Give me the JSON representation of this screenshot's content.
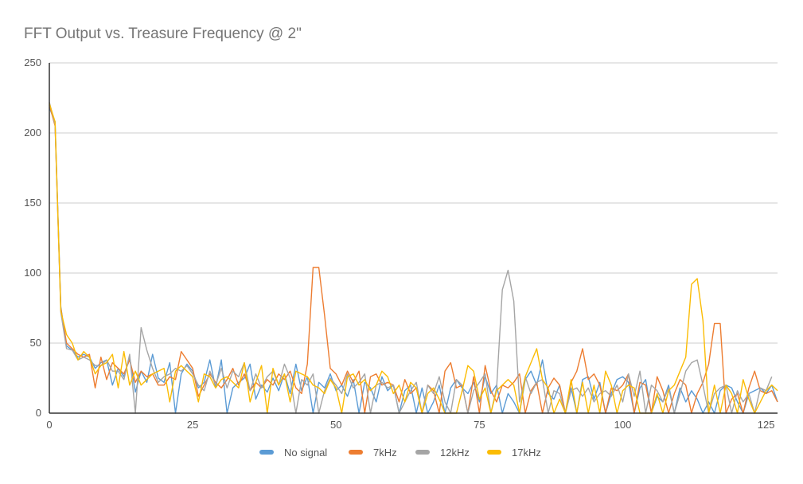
{
  "chart_data": {
    "type": "line",
    "title": "FFT Output vs. Treasure Frequency @ 2\"",
    "xlabel": "",
    "ylabel": "",
    "xlim": [
      0,
      127
    ],
    "ylim": [
      0,
      250
    ],
    "x_ticks": [
      "0",
      "25",
      "50",
      "75",
      "100",
      "125"
    ],
    "y_ticks": [
      "0",
      "50",
      "100",
      "150",
      "200",
      "250"
    ],
    "grid": true,
    "legend_position": "bottom",
    "series": [
      {
        "name": "No signal",
        "color": "#5b9bd5",
        "values": [
          218,
          208,
          76,
          48,
          45,
          40,
          42,
          40,
          32,
          36,
          38,
          20,
          32,
          26,
          40,
          15,
          30,
          22,
          42,
          25,
          22,
          36,
          0,
          28,
          35,
          30,
          18,
          22,
          38,
          18,
          38,
          0,
          18,
          22,
          25,
          35,
          10,
          20,
          15,
          25,
          16,
          28,
          14,
          35,
          16,
          26,
          0,
          22,
          18,
          28,
          16,
          20,
          12,
          24,
          0,
          22,
          18,
          8,
          26,
          16,
          20,
          0,
          16,
          20,
          0,
          18,
          0,
          8,
          20,
          0,
          18,
          24,
          18,
          14,
          22,
          8,
          26,
          14,
          20,
          0,
          14,
          8,
          0,
          24,
          30,
          20,
          38,
          14,
          10,
          20,
          0,
          18,
          0,
          24,
          26,
          10,
          22,
          0,
          14,
          24,
          26,
          22,
          0,
          18,
          24,
          0,
          12,
          8,
          20,
          0,
          18,
          8,
          16,
          10,
          0,
          8,
          0,
          16,
          20,
          18,
          8,
          0,
          14,
          16,
          18,
          14,
          20,
          8
        ]
      },
      {
        "name": "7kHz",
        "color": "#ed7d31",
        "values": [
          220,
          205,
          75,
          50,
          46,
          42,
          40,
          42,
          18,
          40,
          24,
          36,
          32,
          28,
          38,
          22,
          30,
          26,
          28,
          20,
          20,
          26,
          24,
          44,
          38,
          32,
          12,
          20,
          28,
          22,
          18,
          24,
          32,
          20,
          28,
          16,
          22,
          18,
          24,
          20,
          28,
          24,
          30,
          18,
          14,
          35,
          104,
          104,
          70,
          32,
          28,
          20,
          30,
          22,
          30,
          0,
          26,
          28,
          20,
          22,
          20,
          8,
          24,
          14,
          18,
          0,
          20,
          16,
          0,
          30,
          36,
          18,
          20,
          0,
          26,
          0,
          34,
          16,
          8,
          20,
          18,
          22,
          28,
          0,
          16,
          22,
          0,
          18,
          25,
          20,
          0,
          22,
          30,
          46,
          24,
          28,
          20,
          0,
          18,
          16,
          20,
          28,
          0,
          22,
          20,
          0,
          26,
          16,
          0,
          14,
          24,
          20,
          0,
          14,
          22,
          35,
          64,
          64,
          0,
          10,
          14,
          0,
          18,
          30,
          16,
          14,
          16,
          8
        ]
      },
      {
        "name": "12kHz",
        "color": "#a5a5a5",
        "values": [
          222,
          206,
          72,
          46,
          45,
          38,
          40,
          38,
          34,
          34,
          38,
          30,
          30,
          24,
          42,
          0,
          61,
          45,
          32,
          22,
          26,
          28,
          32,
          30,
          34,
          28,
          20,
          16,
          30,
          20,
          32,
          18,
          30,
          26,
          36,
          16,
          28,
          18,
          26,
          30,
          20,
          35,
          25,
          0,
          24,
          20,
          28,
          0,
          16,
          25,
          20,
          14,
          28,
          18,
          22,
          28,
          0,
          20,
          22,
          18,
          20,
          0,
          8,
          16,
          22,
          0,
          20,
          14,
          26,
          8,
          0,
          24,
          20,
          0,
          16,
          22,
          28,
          0,
          18,
          88,
          102,
          80,
          8,
          26,
          14,
          22,
          24,
          0,
          16,
          14,
          0,
          16,
          18,
          12,
          18,
          8,
          14,
          16,
          12,
          20,
          8,
          28,
          12,
          30,
          0,
          20,
          16,
          8,
          18,
          0,
          14,
          30,
          36,
          38,
          20,
          0,
          14,
          18,
          20,
          0,
          16,
          8,
          14,
          0,
          18,
          16,
          26
        ]
      },
      {
        "name": "17kHz",
        "color": "#fbbc04",
        "values": [
          221,
          208,
          73,
          56,
          50,
          38,
          44,
          40,
          28,
          34,
          36,
          42,
          18,
          44,
          20,
          30,
          20,
          24,
          28,
          30,
          32,
          8,
          30,
          34,
          30,
          26,
          8,
          28,
          26,
          18,
          24,
          26,
          22,
          18,
          36,
          8,
          22,
          34,
          0,
          32,
          20,
          28,
          8,
          30,
          28,
          26,
          20,
          18,
          14,
          24,
          18,
          0,
          26,
          28,
          20,
          24,
          16,
          20,
          30,
          26,
          14,
          20,
          8,
          22,
          18,
          0,
          14,
          18,
          10,
          0,
          0,
          0,
          16,
          34,
          30,
          10,
          18,
          0,
          16,
          20,
          24,
          20,
          0,
          26,
          36,
          46,
          24,
          18,
          0,
          10,
          0,
          24,
          0,
          22,
          0,
          20,
          0,
          30,
          20,
          0,
          16,
          20,
          18,
          0,
          0,
          0,
          14,
          0,
          16,
          20,
          30,
          40,
          92,
          96,
          66,
          0,
          20,
          0,
          20,
          14,
          0,
          24,
          10,
          0,
          8,
          16,
          20,
          16
        ]
      }
    ]
  }
}
